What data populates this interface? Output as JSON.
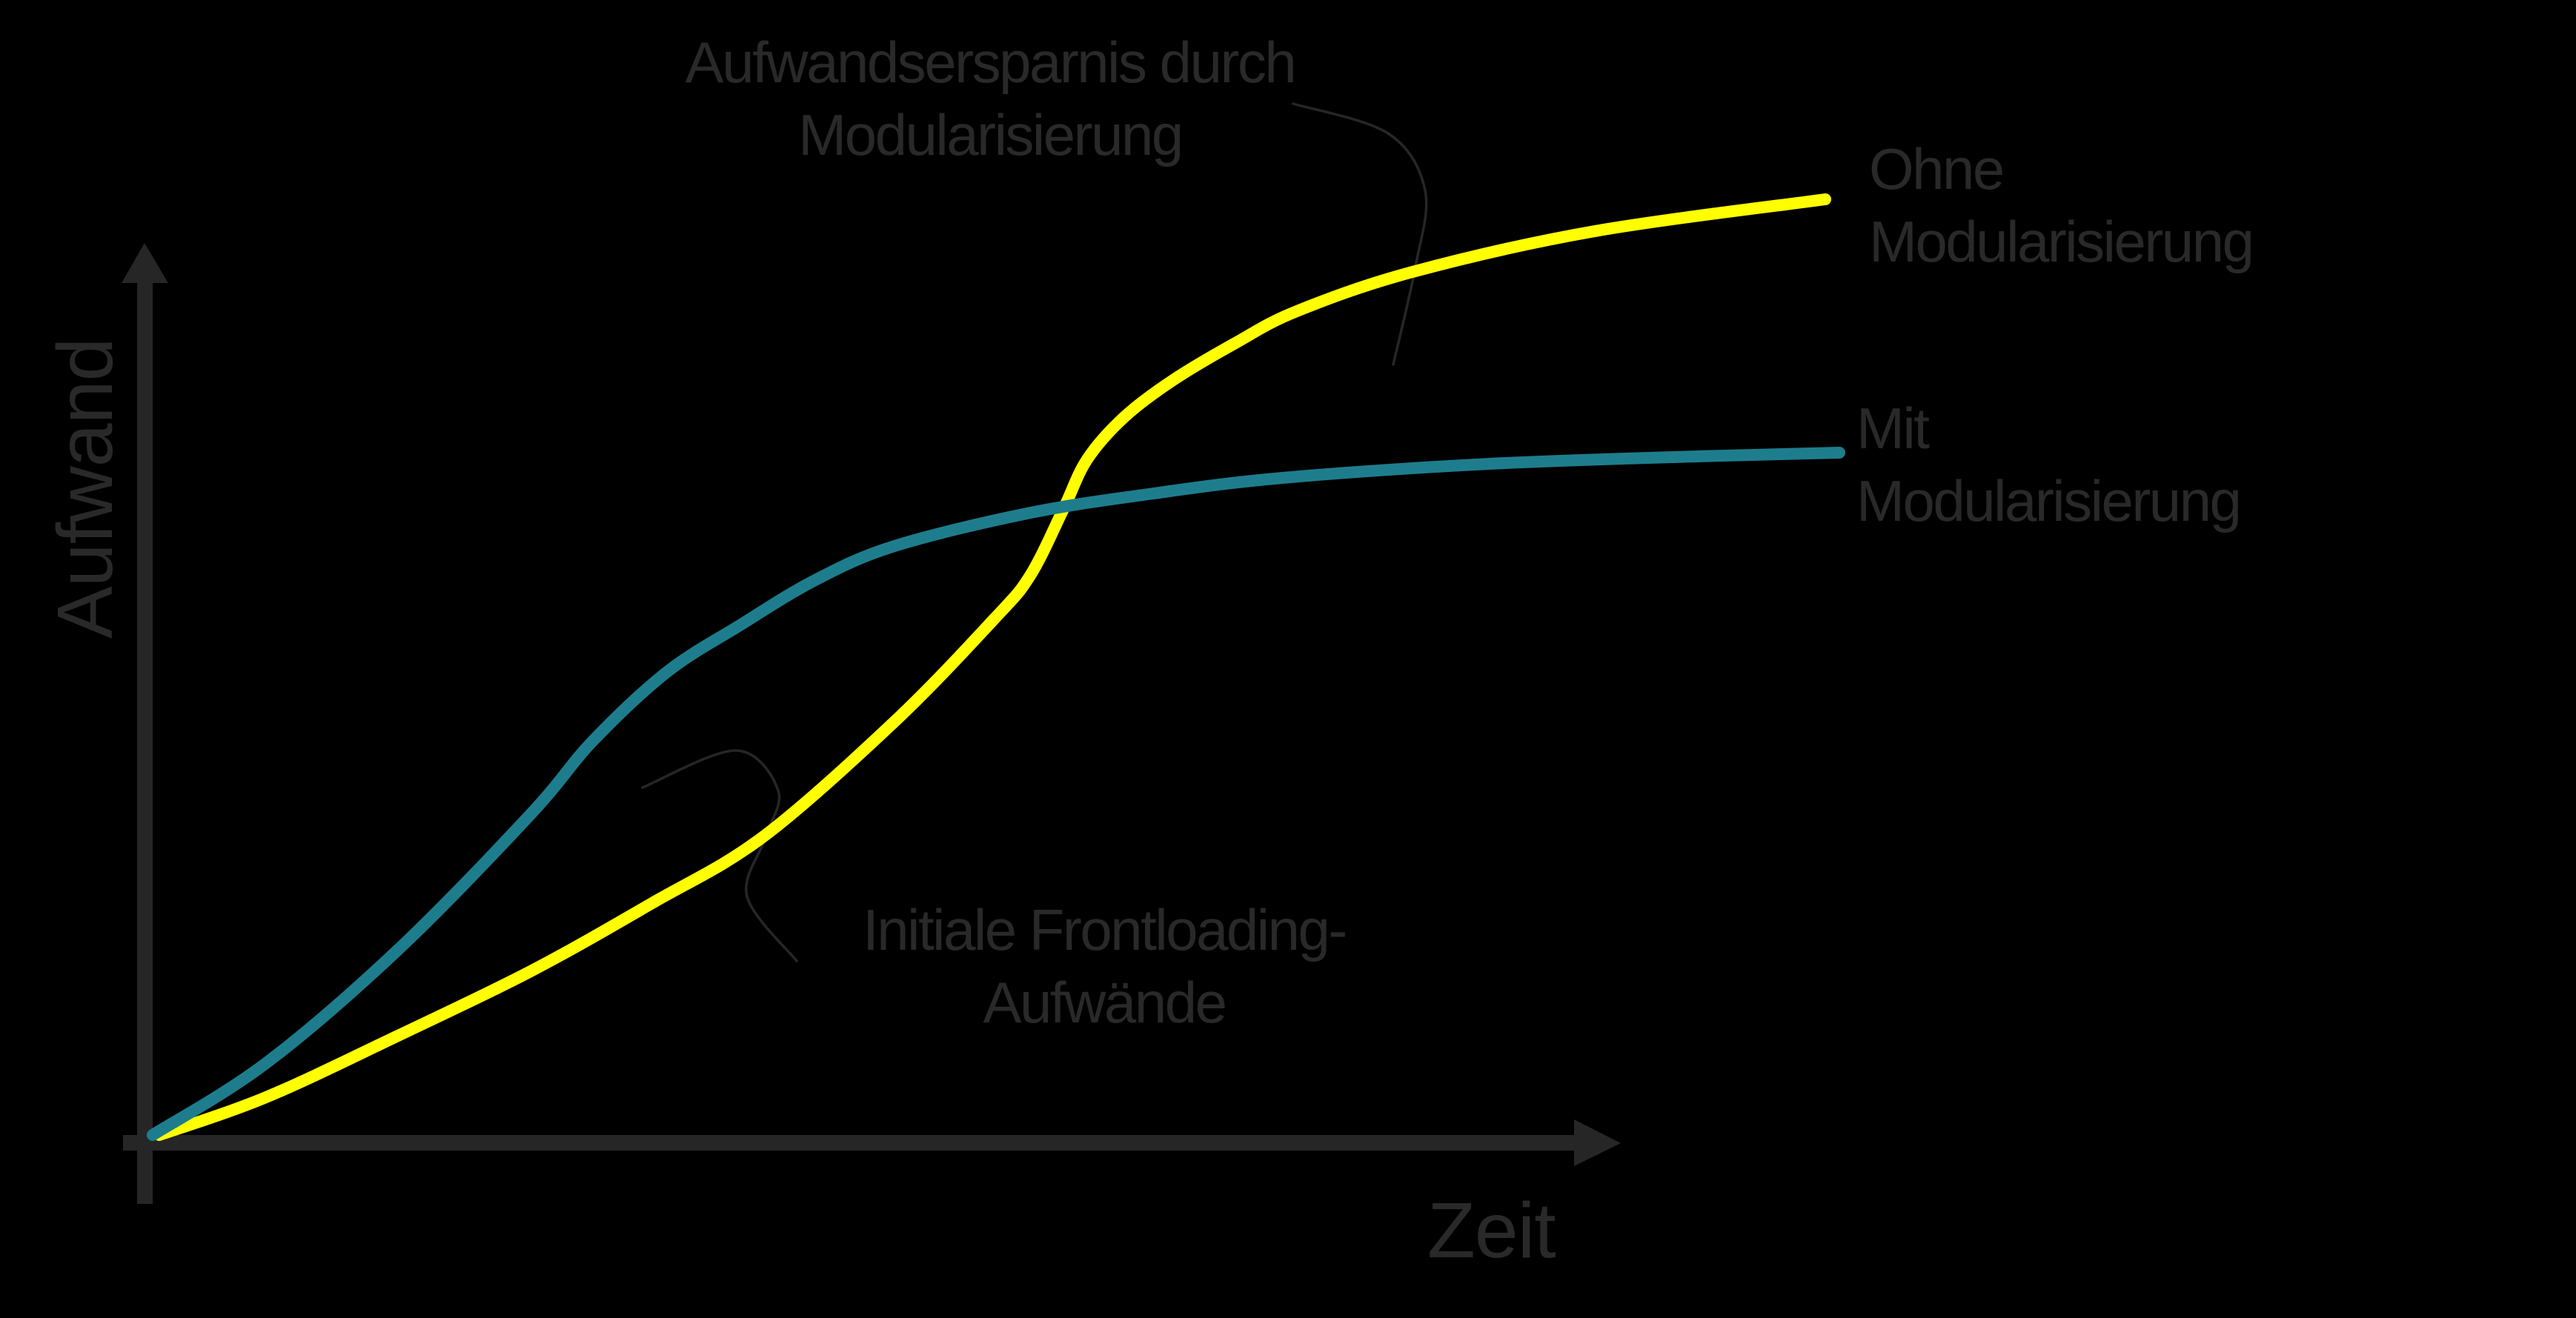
{
  "colors": {
    "background": "#000000",
    "axis": "#262626",
    "text": "#292929",
    "callout": "#262626",
    "series_ohne": "#ffff00",
    "series_mit": "#1e7d8d"
  },
  "axes": {
    "x_label": "Zeit",
    "y_label": "Aufwand"
  },
  "series_labels": {
    "ohne": [
      "Ohne",
      "Modularisierung"
    ],
    "mit": [
      "Mit",
      "Modularisierung"
    ]
  },
  "annotations": {
    "savings": [
      "Aufwandsersparnis durch",
      "Modularisierung"
    ],
    "frontloading": [
      "Initiale Frontloading-",
      "Aufwände"
    ]
  },
  "chart_data": {
    "type": "line",
    "title": "",
    "xlabel": "Zeit",
    "ylabel": "Aufwand",
    "grid": false,
    "legend_position": "inline-right",
    "axis_ticks": "none (qualitative)",
    "x_range": [
      0,
      100
    ],
    "y_range": [
      0,
      100
    ],
    "series": [
      {
        "name": "Ohne Modularisierung",
        "color": "#ffff00",
        "x": [
          0,
          7,
          15,
          23,
          30,
          36,
          44,
          50,
          52,
          54,
          55,
          57,
          60,
          64,
          67,
          74,
          85,
          98
        ],
        "values": [
          0,
          4,
          11,
          18,
          26,
          33,
          46,
          57,
          62,
          69,
          75,
          80,
          84,
          88,
          91,
          96,
          100,
          104
        ]
      },
      {
        "name": "Mit Modularisierung",
        "color": "#1e7d8d",
        "x": [
          0,
          7,
          15,
          23,
          27,
          31,
          36,
          40,
          44,
          52,
          59,
          67,
          80,
          92,
          98
        ],
        "values": [
          0,
          8,
          20,
          36,
          44,
          51,
          57,
          62,
          66,
          69,
          72,
          73,
          75,
          76,
          77
        ]
      }
    ],
    "annotations": [
      {
        "text": "Aufwandsersparnis durch Modularisierung",
        "points_to": "gap between curves (late phase)"
      },
      {
        "text": "Initiale Frontloading-Aufwände",
        "points_to": "gap between curves (early phase)"
      }
    ]
  },
  "geometry": {
    "curve_ohne": [
      [
        215,
        1532
      ],
      [
        359,
        1481
      ],
      [
        537,
        1398
      ],
      [
        716,
        1311
      ],
      [
        880,
        1219
      ],
      [
        1029,
        1130
      ],
      [
        1207,
        974
      ],
      [
        1341,
        836
      ],
      [
        1390,
        777
      ],
      [
        1435,
        687
      ],
      [
        1467,
        620
      ],
      [
        1517,
        563
      ],
      [
        1583,
        513
      ],
      [
        1667,
        463
      ],
      [
        1750,
        420
      ],
      [
        1906,
        367
      ],
      [
        2152,
        312
      ],
      [
        2463,
        269
      ]
    ],
    "curve_mit": [
      [
        206,
        1532
      ],
      [
        359,
        1435
      ],
      [
        537,
        1282
      ],
      [
        716,
        1099
      ],
      [
        800,
        1000
      ],
      [
        900,
        907
      ],
      [
        1000,
        843
      ],
      [
        1100,
        783
      ],
      [
        1207,
        737
      ],
      [
        1386,
        693
      ],
      [
        1550,
        667
      ],
      [
        1731,
        645
      ],
      [
        2011,
        626
      ],
      [
        2292,
        616
      ],
      [
        2482,
        611
      ]
    ],
    "callout_savings": [
      [
        1745,
        140
      ],
      [
        1873,
        180
      ],
      [
        1923,
        257
      ],
      [
        1910,
        360
      ],
      [
        1880,
        492
      ]
    ],
    "callout_frontloading": [
      [
        867,
        1063
      ],
      [
        993,
        1013
      ],
      [
        1050,
        1067
      ],
      [
        1033,
        1130
      ],
      [
        1008,
        1210
      ],
      [
        1075,
        1297
      ]
    ]
  }
}
